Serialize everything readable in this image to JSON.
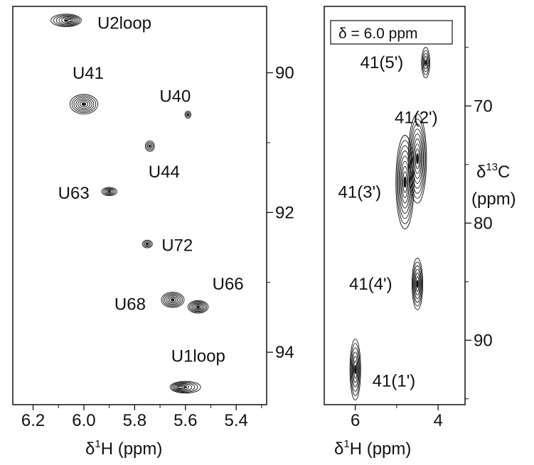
{
  "chart_data": [
    {
      "type": "contour",
      "panel": "left",
      "xlabel": "δ¹H (ppm)",
      "xlabel_parts": {
        "delta": "δ",
        "sup": "1",
        "main": "H (ppm)"
      },
      "ylabel": "",
      "xlim": [
        6.28,
        5.28
      ],
      "ylim": [
        89.05,
        94.75
      ],
      "x_ticks": [
        "6.2",
        "6.0",
        "5.8",
        "5.6",
        "5.4"
      ],
      "x_tick_values": [
        6.2,
        6.0,
        5.8,
        5.6,
        5.4
      ],
      "y_ticks": [
        "90",
        "92",
        "94"
      ],
      "y_tick_values": [
        90,
        92,
        94
      ],
      "peaks": [
        {
          "label": "U2loop",
          "x": 6.07,
          "y": 89.25,
          "w": 0.06,
          "h": 0.09,
          "n": 7,
          "skew": 0.4
        },
        {
          "label": "U41",
          "x": 6.0,
          "y": 90.45,
          "w": 0.055,
          "h": 0.14,
          "n": 7,
          "skew": 0
        },
        {
          "label": "U40",
          "x": 5.59,
          "y": 90.6,
          "w": 0.012,
          "h": 0.05,
          "n": 3,
          "skew": 0
        },
        {
          "label": "U44",
          "x": 5.74,
          "y": 91.05,
          "w": 0.018,
          "h": 0.075,
          "n": 4,
          "skew": 0
        },
        {
          "label": "U63",
          "x": 5.9,
          "y": 91.7,
          "w": 0.03,
          "h": 0.06,
          "n": 5,
          "skew": 0
        },
        {
          "label": "U72",
          "x": 5.75,
          "y": 92.45,
          "w": 0.02,
          "h": 0.055,
          "n": 4,
          "skew": 0
        },
        {
          "label": "U68",
          "x": 5.65,
          "y": 93.25,
          "w": 0.045,
          "h": 0.11,
          "n": 7,
          "skew": 0
        },
        {
          "label": "U66",
          "x": 5.55,
          "y": 93.35,
          "w": 0.04,
          "h": 0.09,
          "n": 7,
          "skew": 0
        },
        {
          "label": "U1loop",
          "x": 5.6,
          "y": 94.5,
          "w": 0.06,
          "h": 0.085,
          "n": 7,
          "skew": -0.6
        }
      ]
    },
    {
      "type": "contour",
      "panel": "right",
      "annotation": "δ = 6.0 ppm",
      "xlabel": "δ¹H (ppm)",
      "xlabel_parts": {
        "delta": "δ",
        "sup": "1",
        "main": "H (ppm)"
      },
      "ylabel": "δ¹³C (ppm)",
      "ylabel_parts": {
        "delta": "δ",
        "sup": "13",
        "main": "C",
        "unit": "(ppm)"
      },
      "xlim": [
        6.75,
        3.35
      ],
      "ylim": [
        61.5,
        95.5
      ],
      "x_ticks": [
        "6",
        "4"
      ],
      "x_tick_values": [
        6,
        4
      ],
      "y_ticks": [
        "70",
        "80",
        "90"
      ],
      "y_tick_values": [
        70,
        80,
        90
      ],
      "peaks": [
        {
          "label": "41(5')",
          "x": 4.3,
          "y": 66.3,
          "w": 0.1,
          "h": 1.3,
          "n": 5,
          "skew": 0
        },
        {
          "label": "41(2')",
          "x": 4.5,
          "y": 74.5,
          "w": 0.22,
          "h": 3.8,
          "n": 9,
          "skew": 0
        },
        {
          "label": "41(3')",
          "x": 4.8,
          "y": 76.5,
          "w": 0.22,
          "h": 4.0,
          "n": 9,
          "skew": 0
        },
        {
          "label": "41(4')",
          "x": 4.5,
          "y": 85.2,
          "w": 0.13,
          "h": 2.2,
          "n": 7,
          "skew": 0
        },
        {
          "label": "41(1')",
          "x": 6.0,
          "y": 92.5,
          "w": 0.13,
          "h": 2.6,
          "n": 7,
          "skew": 0
        }
      ]
    }
  ]
}
